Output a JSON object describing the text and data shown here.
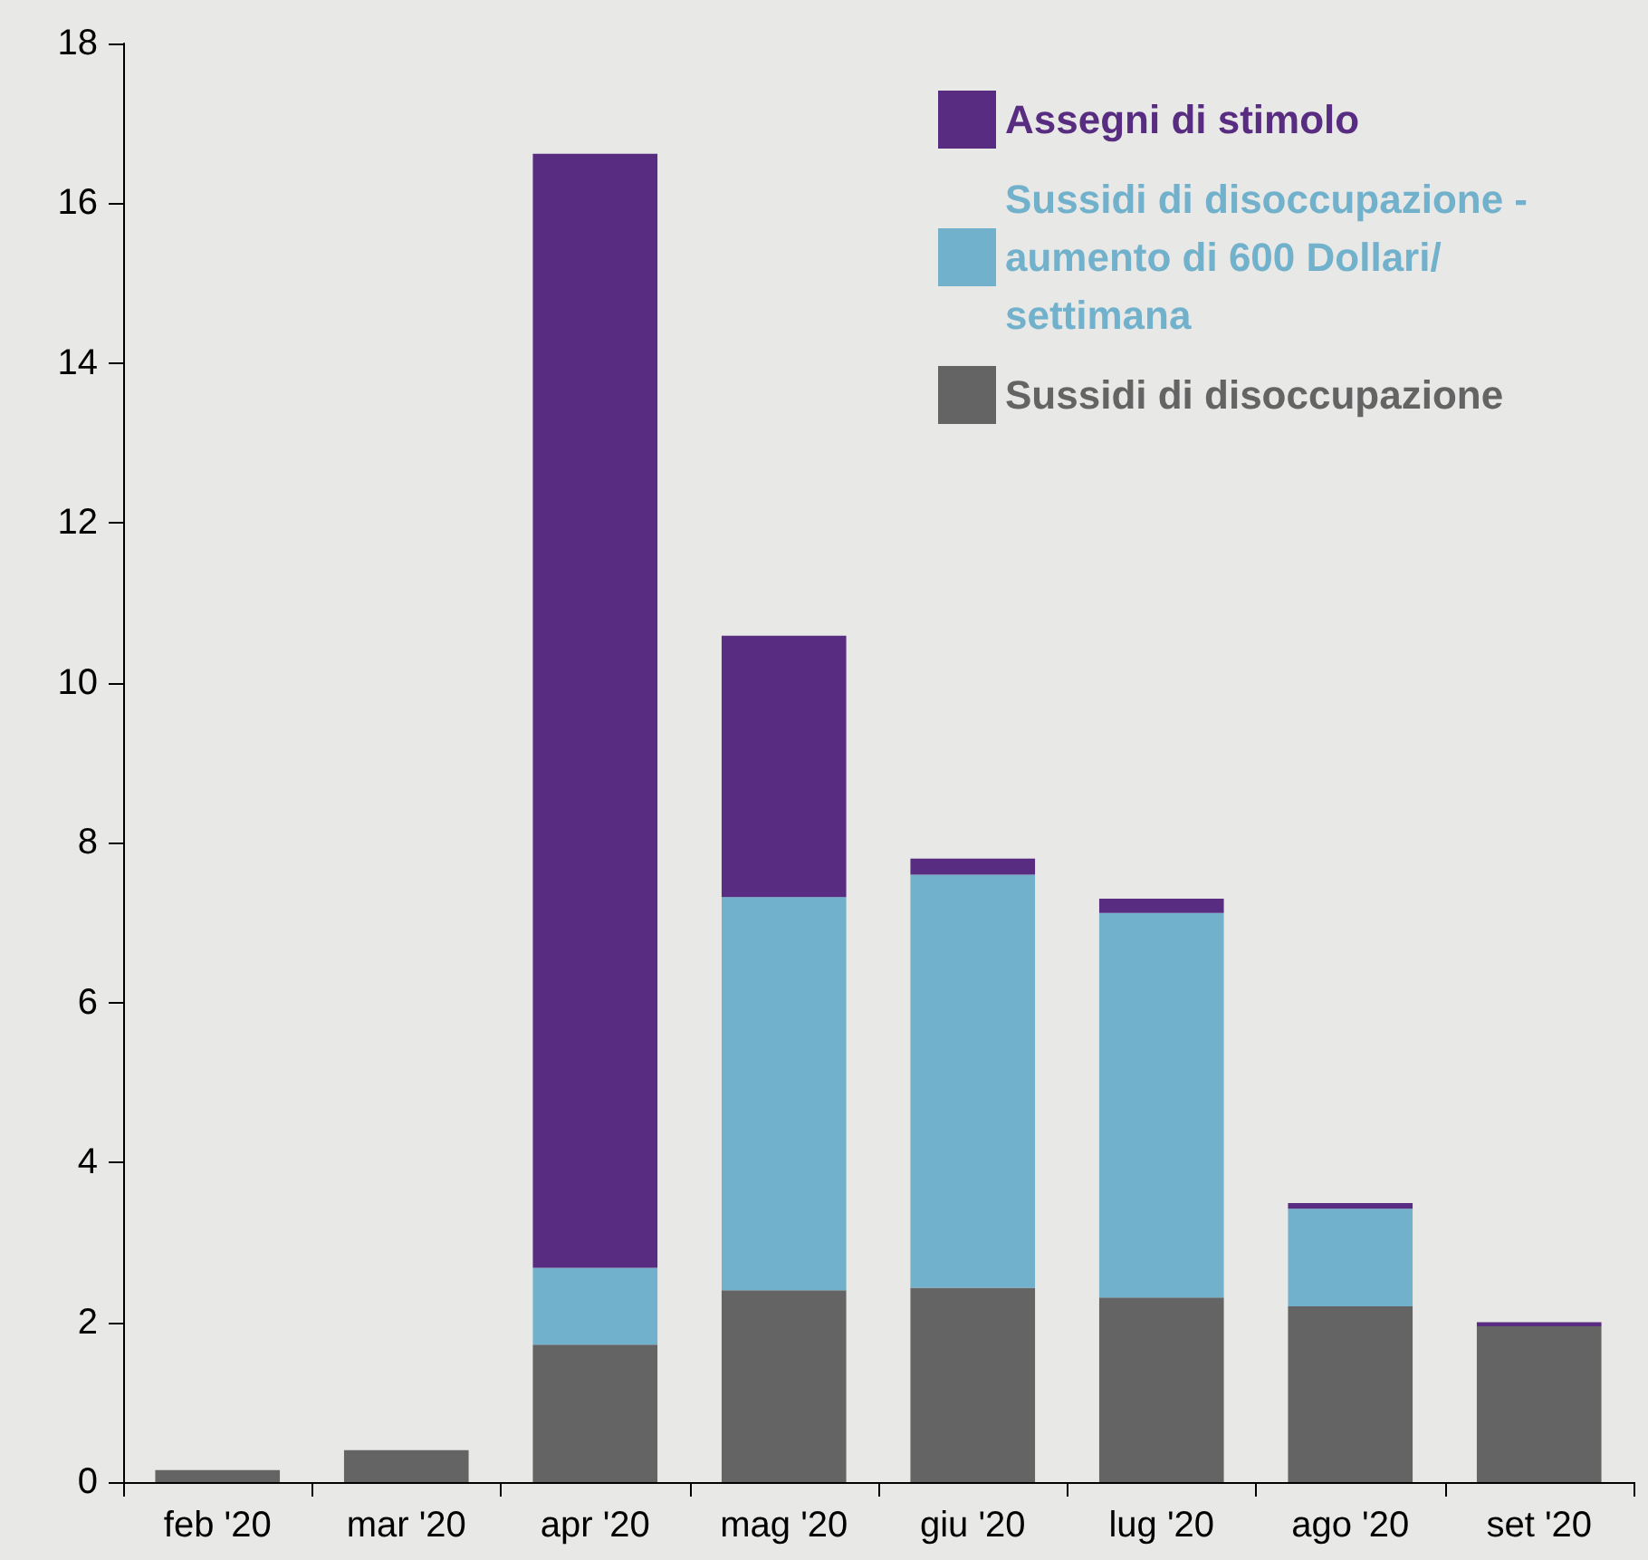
{
  "chart_data": {
    "type": "bar",
    "stacked": true,
    "categories": [
      "feb '20",
      "mar '20",
      "apr '20",
      "mag '20",
      "giu '20",
      "lug '20",
      "ago '20",
      "set '20"
    ],
    "series": [
      {
        "name": "Sussidi di disoccupazione",
        "color": "#646464",
        "values": [
          0.15,
          0.4,
          1.72,
          2.4,
          2.43,
          2.31,
          2.2,
          1.95
        ]
      },
      {
        "name": "Sussidi di disoccupazione - aumento di 600 Dollari/settimana",
        "color": "#72b1cb",
        "values": [
          0,
          0,
          0.96,
          4.92,
          5.17,
          4.81,
          1.22,
          0
        ]
      },
      {
        "name": "Assegni di stimolo",
        "color": "#582c80",
        "values": [
          0,
          0,
          13.94,
          3.27,
          0.2,
          0.18,
          0.07,
          0.05
        ]
      }
    ],
    "ylim": [
      0,
      18
    ],
    "yticks": [
      0,
      2,
      4,
      6,
      8,
      10,
      12,
      14,
      16,
      18
    ],
    "grid": false,
    "legend": "top right"
  }
}
